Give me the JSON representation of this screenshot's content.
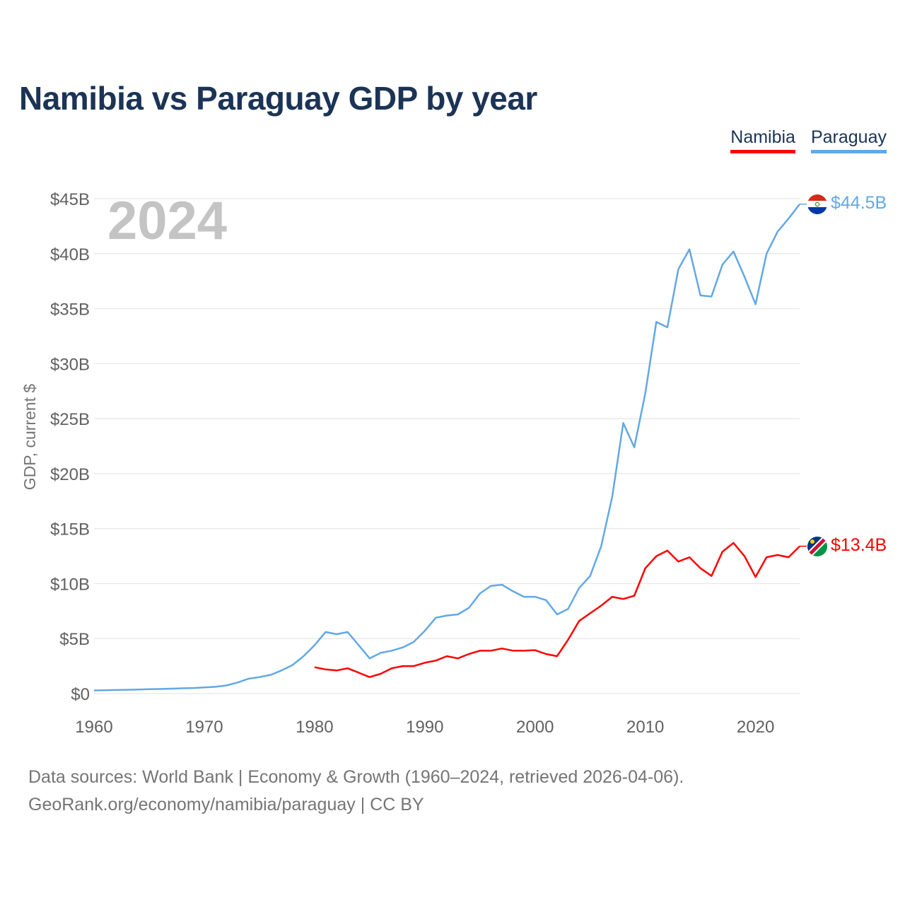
{
  "title": "Namibia vs Paraguay GDP by year",
  "legend": [
    {
      "label": "Namibia",
      "color": "#ff0000"
    },
    {
      "label": "Paraguay",
      "color": "#62a8e5"
    }
  ],
  "footer": {
    "line1": "Data sources: World Bank | Economy & Growth (1960–2024, retrieved 2026-04-06).",
    "line2": "GeoRank.org/economy/namibia/paraguay | CC BY"
  },
  "chart_data": {
    "type": "line",
    "title": "Namibia vs Paraguay GDP by year",
    "ylabel": "GDP, current $",
    "xlabel": "",
    "year_watermark": "2024",
    "xlim": [
      1960,
      2024
    ],
    "ylim": [
      0,
      45
    ],
    "y_unit": "billion current US$",
    "xticks": [
      1960,
      1970,
      1980,
      1990,
      2000,
      2010,
      2020
    ],
    "xtick_labels": [
      "1960",
      "1970",
      "1980",
      "1990",
      "2000",
      "2010",
      "2020"
    ],
    "yticks": [
      0,
      5,
      10,
      15,
      20,
      25,
      30,
      35,
      40,
      45
    ],
    "ytick_labels": [
      "$0",
      "$5B",
      "$10B",
      "$15B",
      "$20B",
      "$25B",
      "$30B",
      "$35B",
      "$40B",
      "$45B"
    ],
    "grid": true,
    "legend_position": "top-right",
    "series": [
      {
        "name": "Paraguay",
        "color": "#62a8e5",
        "end_label": "$44.5B",
        "flag_icon": "paraguay-flag-icon",
        "x": [
          1960,
          1961,
          1962,
          1963,
          1964,
          1965,
          1966,
          1967,
          1968,
          1969,
          1970,
          1971,
          1972,
          1973,
          1974,
          1975,
          1976,
          1977,
          1978,
          1979,
          1980,
          1981,
          1982,
          1983,
          1984,
          1985,
          1986,
          1987,
          1988,
          1989,
          1990,
          1991,
          1992,
          1993,
          1994,
          1995,
          1996,
          1997,
          1998,
          1999,
          2000,
          2001,
          2002,
          2003,
          2004,
          2005,
          2006,
          2007,
          2008,
          2009,
          2010,
          2011,
          2012,
          2013,
          2014,
          2015,
          2016,
          2017,
          2018,
          2019,
          2020,
          2021,
          2022,
          2023,
          2024
        ],
        "values": [
          0.29,
          0.31,
          0.33,
          0.35,
          0.37,
          0.4,
          0.42,
          0.45,
          0.48,
          0.51,
          0.56,
          0.62,
          0.74,
          1.0,
          1.35,
          1.5,
          1.7,
          2.1,
          2.6,
          3.4,
          4.4,
          5.6,
          5.4,
          5.6,
          4.4,
          3.2,
          3.7,
          3.9,
          4.2,
          4.7,
          5.7,
          6.9,
          7.1,
          7.2,
          7.8,
          9.1,
          9.8,
          9.9,
          9.3,
          8.8,
          8.8,
          8.5,
          7.2,
          7.7,
          9.6,
          10.7,
          13.4,
          17.9,
          24.6,
          22.4,
          27.3,
          33.8,
          33.3,
          38.6,
          40.4,
          36.2,
          36.1,
          39.0,
          40.2,
          37.9,
          35.4,
          40.0,
          42.0,
          43.2,
          44.5
        ]
      },
      {
        "name": "Namibia",
        "color": "#ff0000",
        "end_label": "$13.4B",
        "flag_icon": "namibia-flag-icon",
        "x": [
          1980,
          1981,
          1982,
          1983,
          1984,
          1985,
          1986,
          1987,
          1988,
          1989,
          1990,
          1991,
          1992,
          1993,
          1994,
          1995,
          1996,
          1997,
          1998,
          1999,
          2000,
          2001,
          2002,
          2003,
          2004,
          2005,
          2006,
          2007,
          2008,
          2009,
          2010,
          2011,
          2012,
          2013,
          2014,
          2015,
          2016,
          2017,
          2018,
          2019,
          2020,
          2021,
          2022,
          2023,
          2024
        ],
        "values": [
          2.4,
          2.2,
          2.1,
          2.3,
          1.9,
          1.5,
          1.8,
          2.3,
          2.5,
          2.5,
          2.8,
          3.0,
          3.4,
          3.2,
          3.6,
          3.9,
          3.9,
          4.1,
          3.9,
          3.9,
          3.95,
          3.6,
          3.4,
          4.9,
          6.6,
          7.3,
          8.0,
          8.8,
          8.6,
          8.9,
          11.4,
          12.5,
          13.0,
          12.0,
          12.4,
          11.4,
          10.7,
          12.9,
          13.7,
          12.5,
          10.6,
          12.4,
          12.6,
          12.4,
          13.4
        ]
      }
    ]
  }
}
